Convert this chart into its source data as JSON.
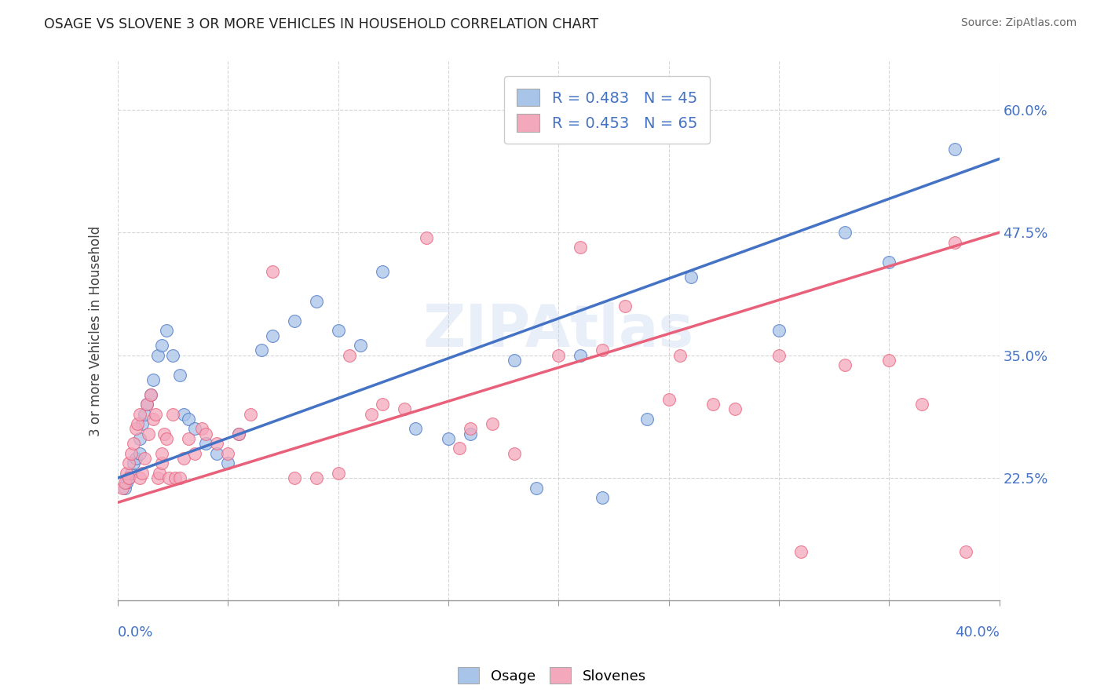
{
  "title": "OSAGE VS SLOVENE 3 OR MORE VEHICLES IN HOUSEHOLD CORRELATION CHART",
  "source": "Source: ZipAtlas.com",
  "ylabel": "3 or more Vehicles in Household",
  "right_ytick_vals": [
    22.5,
    35.0,
    47.5,
    60.0
  ],
  "right_ytick_labels": [
    "22.5%",
    "35.0%",
    "47.5%",
    "60.0%"
  ],
  "legend_osage": "R = 0.483   N = 45",
  "legend_slovene": "R = 0.453   N = 65",
  "osage_color": "#a8c4e8",
  "slovene_color": "#f4a8bc",
  "osage_line_color": "#4472c4",
  "slovene_line_color": "#e8607a",
  "watermark": "ZIPAtlas",
  "ymin": 10.0,
  "ymax": 65.0,
  "xmin": 0.0,
  "xmax": 40.0,
  "osage_line_x0": 0.0,
  "osage_line_y0": 22.5,
  "osage_line_x1": 40.0,
  "osage_line_y1": 55.0,
  "slovene_line_x0": 0.0,
  "slovene_line_y0": 20.0,
  "slovene_line_x1": 40.0,
  "slovene_line_y1": 47.5,
  "osage_x": [
    0.3,
    0.4,
    0.5,
    0.6,
    0.7,
    0.8,
    1.0,
    1.0,
    1.1,
    1.2,
    1.3,
    1.5,
    1.6,
    1.8,
    2.0,
    2.2,
    2.5,
    2.8,
    3.0,
    3.2,
    3.5,
    4.0,
    4.5,
    5.0,
    5.5,
    6.5,
    7.0,
    8.0,
    9.0,
    10.0,
    11.0,
    12.0,
    13.5,
    15.0,
    16.0,
    18.0,
    19.0,
    21.0,
    22.0,
    24.0,
    26.0,
    30.0,
    33.0,
    35.0,
    38.0
  ],
  "osage_y": [
    21.5,
    22.0,
    22.5,
    23.0,
    24.0,
    24.5,
    25.0,
    26.5,
    28.0,
    29.0,
    30.0,
    31.0,
    32.5,
    35.0,
    36.0,
    37.5,
    35.0,
    33.0,
    29.0,
    28.5,
    27.5,
    26.0,
    25.0,
    24.0,
    27.0,
    35.5,
    37.0,
    38.5,
    40.5,
    37.5,
    36.0,
    43.5,
    27.5,
    26.5,
    27.0,
    34.5,
    21.5,
    35.0,
    20.5,
    28.5,
    43.0,
    37.5,
    47.5,
    44.5,
    56.0
  ],
  "slovene_x": [
    0.2,
    0.3,
    0.4,
    0.5,
    0.5,
    0.6,
    0.7,
    0.8,
    0.9,
    1.0,
    1.0,
    1.1,
    1.2,
    1.3,
    1.4,
    1.5,
    1.6,
    1.7,
    1.8,
    1.9,
    2.0,
    2.0,
    2.1,
    2.2,
    2.3,
    2.5,
    2.6,
    2.8,
    3.0,
    3.2,
    3.5,
    3.8,
    4.0,
    4.5,
    5.0,
    5.5,
    6.0,
    7.0,
    8.0,
    9.0,
    10.0,
    11.5,
    12.0,
    13.0,
    15.5,
    16.0,
    17.0,
    18.0,
    20.0,
    22.0,
    23.0,
    25.0,
    27.0,
    28.0,
    30.0,
    33.0,
    35.0,
    36.5,
    38.0,
    10.5,
    14.0,
    21.0,
    25.5,
    31.0,
    38.5
  ],
  "slovene_y": [
    21.5,
    22.0,
    23.0,
    22.5,
    24.0,
    25.0,
    26.0,
    27.5,
    28.0,
    29.0,
    22.5,
    23.0,
    24.5,
    30.0,
    27.0,
    31.0,
    28.5,
    29.0,
    22.5,
    23.0,
    24.0,
    25.0,
    27.0,
    26.5,
    22.5,
    29.0,
    22.5,
    22.5,
    24.5,
    26.5,
    25.0,
    27.5,
    27.0,
    26.0,
    25.0,
    27.0,
    29.0,
    43.5,
    22.5,
    22.5,
    23.0,
    29.0,
    30.0,
    29.5,
    25.5,
    27.5,
    28.0,
    25.0,
    35.0,
    35.5,
    40.0,
    30.5,
    30.0,
    29.5,
    35.0,
    34.0,
    34.5,
    30.0,
    46.5,
    35.0,
    47.0,
    46.0,
    35.0,
    15.0,
    15.0
  ]
}
